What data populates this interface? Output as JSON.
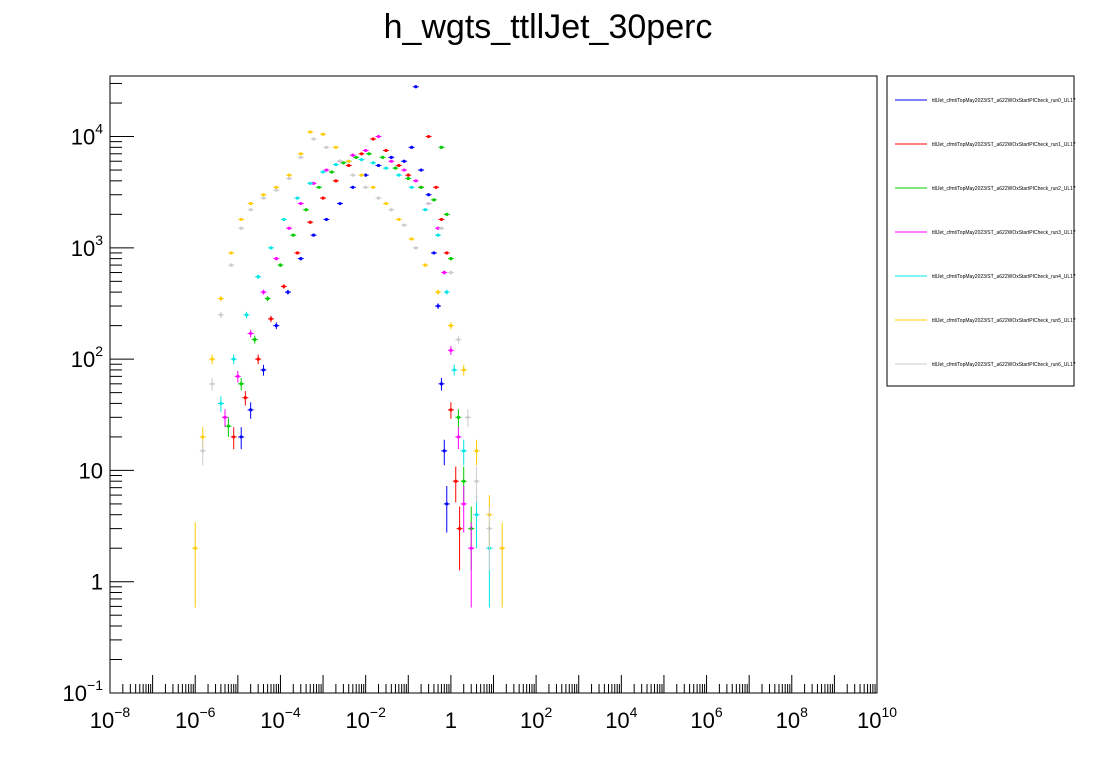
{
  "chart_data": {
    "type": "scatter",
    "title": "h_wgts_ttllJet_30perc",
    "xlabel": "",
    "ylabel": "",
    "x_scale": "log",
    "y_scale": "log",
    "xlim": [
      1e-08,
      10000000000.0
    ],
    "ylim": [
      0.1,
      35000
    ],
    "grid": false,
    "legend_placement": "top-right outside",
    "x_ticks": [
      {
        "base": "10",
        "exp": "−8"
      },
      {
        "base": "10",
        "exp": "−6"
      },
      {
        "base": "10",
        "exp": "−4"
      },
      {
        "base": "10",
        "exp": "−2"
      },
      {
        "base": "1",
        "exp": ""
      },
      {
        "base": "10",
        "exp": "2"
      },
      {
        "base": "10",
        "exp": "4"
      },
      {
        "base": "10",
        "exp": "6"
      },
      {
        "base": "10",
        "exp": "8"
      },
      {
        "base": "10",
        "exp": "10"
      }
    ],
    "y_ticks": [
      {
        "base": "10",
        "exp": "−1"
      },
      {
        "base": "1",
        "exp": ""
      },
      {
        "base": "10",
        "exp": ""
      },
      {
        "base": "10",
        "exp": "2"
      },
      {
        "base": "10",
        "exp": "3"
      },
      {
        "base": "10",
        "exp": "4"
      }
    ],
    "series": [
      {
        "name": "ttllJet_cfmt/TopMay2023/ST_a622WOxStartPICheck_run0_UL17",
        "color": "#0000ff",
        "points": [
          [
            1.2e-05,
            20
          ],
          [
            2e-05,
            35
          ],
          [
            4e-05,
            80
          ],
          [
            8e-05,
            200
          ],
          [
            0.00015,
            400
          ],
          [
            0.0003,
            800
          ],
          [
            0.0006,
            1300
          ],
          [
            0.0012,
            1800
          ],
          [
            0.0025,
            2500
          ],
          [
            0.005,
            3500
          ],
          [
            0.01,
            4500
          ],
          [
            0.02,
            5500
          ],
          [
            0.04,
            6500
          ],
          [
            0.08,
            6000
          ],
          [
            0.12,
            8000
          ],
          [
            0.15,
            28000
          ],
          [
            0.2,
            5000
          ],
          [
            0.3,
            3000
          ],
          [
            0.4,
            900
          ],
          [
            0.5,
            300
          ],
          [
            0.6,
            60
          ],
          [
            0.7,
            15
          ],
          [
            0.8,
            5
          ]
        ]
      },
      {
        "name": "ttllJet_cfmt/TopMay2023/ST_a622WOxStartPICheck_run1_UL17",
        "color": "#ff0000",
        "points": [
          [
            8e-06,
            20
          ],
          [
            1.5e-05,
            45
          ],
          [
            3e-05,
            100
          ],
          [
            6e-05,
            230
          ],
          [
            0.00012,
            450
          ],
          [
            0.00025,
            900
          ],
          [
            0.0005,
            1700
          ],
          [
            0.001,
            2800
          ],
          [
            0.002,
            4000
          ],
          [
            0.004,
            5500
          ],
          [
            0.008,
            7000
          ],
          [
            0.015,
            9500
          ],
          [
            0.03,
            7500
          ],
          [
            0.06,
            5500
          ],
          [
            0.1,
            4500
          ],
          [
            0.2,
            3500
          ],
          [
            0.3,
            10000
          ],
          [
            0.45,
            3500
          ],
          [
            0.6,
            1800
          ],
          [
            0.8,
            900
          ],
          [
            1.0,
            35
          ],
          [
            1.3,
            8
          ],
          [
            1.6,
            3
          ]
        ]
      },
      {
        "name": "ttllJet_cfmt/TopMay2023/ST_a622WOxStartPICheck_run2_UL17",
        "color": "#00cc00",
        "points": [
          [
            6e-06,
            25
          ],
          [
            1.2e-05,
            60
          ],
          [
            2.5e-05,
            150
          ],
          [
            5e-05,
            350
          ],
          [
            0.0001,
            700
          ],
          [
            0.0002,
            1300
          ],
          [
            0.0004,
            2200
          ],
          [
            0.0008,
            3500
          ],
          [
            0.0016,
            4800
          ],
          [
            0.003,
            5800
          ],
          [
            0.006,
            6500
          ],
          [
            0.012,
            7000
          ],
          [
            0.025,
            6500
          ],
          [
            0.05,
            5200
          ],
          [
            0.1,
            4200
          ],
          [
            0.2,
            3500
          ],
          [
            0.4,
            2700
          ],
          [
            0.6,
            8000
          ],
          [
            0.8,
            2000
          ],
          [
            1.0,
            800
          ],
          [
            1.5,
            30
          ],
          [
            2.0,
            8
          ],
          [
            3.0,
            3
          ]
        ]
      },
      {
        "name": "ttllJet_cfmt/TopMay2023/ST_a622WOxStartPICheck_run3_UL17",
        "color": "#ff00ff",
        "points": [
          [
            5e-06,
            30
          ],
          [
            1e-05,
            70
          ],
          [
            2e-05,
            170
          ],
          [
            4e-05,
            400
          ],
          [
            8e-05,
            800
          ],
          [
            0.00016,
            1500
          ],
          [
            0.0003,
            2500
          ],
          [
            0.0006,
            3800
          ],
          [
            0.0012,
            5000
          ],
          [
            0.0025,
            6000
          ],
          [
            0.005,
            6800
          ],
          [
            0.01,
            7500
          ],
          [
            0.02,
            10000
          ],
          [
            0.04,
            6000
          ],
          [
            0.08,
            5000
          ],
          [
            0.15,
            4000
          ],
          [
            0.3,
            2500
          ],
          [
            0.5,
            1500
          ],
          [
            0.7,
            600
          ],
          [
            1.0,
            120
          ],
          [
            1.5,
            20
          ],
          [
            2.0,
            5
          ],
          [
            3.0,
            2
          ]
        ]
      },
      {
        "name": "ttllJet_cfmt/TopMay2023/ST_a622WOxStartPICheck_run4_UL17",
        "color": "#00e5e5",
        "points": [
          [
            4e-06,
            40
          ],
          [
            8e-06,
            100
          ],
          [
            1.6e-05,
            250
          ],
          [
            3e-05,
            550
          ],
          [
            6e-05,
            1000
          ],
          [
            0.00012,
            1800
          ],
          [
            0.00025,
            2800
          ],
          [
            0.0005,
            3800
          ],
          [
            0.001,
            4800
          ],
          [
            0.002,
            5600
          ],
          [
            0.004,
            6000
          ],
          [
            0.008,
            6200
          ],
          [
            0.015,
            5800
          ],
          [
            0.03,
            5200
          ],
          [
            0.06,
            4500
          ],
          [
            0.12,
            3500
          ],
          [
            0.25,
            2200
          ],
          [
            0.5,
            1300
          ],
          [
            0.8,
            400
          ],
          [
            1.2,
            80
          ],
          [
            2.0,
            15
          ],
          [
            4.0,
            4
          ],
          [
            8.0,
            2
          ]
        ]
      },
      {
        "name": "ttllJet_cfmt/TopMay2023/ST_a622WOxStartPICheck_run5_UL17",
        "color": "#ffcc00",
        "points": [
          [
            1e-06,
            2
          ],
          [
            1.5e-06,
            20
          ],
          [
            2.5e-06,
            100
          ],
          [
            4e-06,
            350
          ],
          [
            7e-06,
            900
          ],
          [
            1.2e-05,
            1800
          ],
          [
            2e-05,
            2500
          ],
          [
            4e-05,
            3000
          ],
          [
            8e-05,
            3500
          ],
          [
            0.00016,
            4500
          ],
          [
            0.0003,
            7000
          ],
          [
            0.0005,
            11000
          ],
          [
            0.001,
            10500
          ],
          [
            0.002,
            8000
          ],
          [
            0.004,
            6000
          ],
          [
            0.008,
            4500
          ],
          [
            0.015,
            3500
          ],
          [
            0.03,
            2500
          ],
          [
            0.06,
            1800
          ],
          [
            0.12,
            1200
          ],
          [
            0.25,
            700
          ],
          [
            0.5,
            400
          ],
          [
            1.0,
            200
          ],
          [
            2.0,
            80
          ],
          [
            4.0,
            15
          ],
          [
            8.0,
            4
          ],
          [
            16,
            2
          ]
        ]
      },
      {
        "name": "ttllJet_cfmt/TopMay2023/ST_a622WOxStartPICheck_run6_UL17",
        "color": "#cccccc",
        "points": [
          [
            1.5e-06,
            15
          ],
          [
            2.5e-06,
            60
          ],
          [
            4e-06,
            250
          ],
          [
            7e-06,
            700
          ],
          [
            1.2e-05,
            1500
          ],
          [
            2e-05,
            2200
          ],
          [
            4e-05,
            2800
          ],
          [
            8e-05,
            3300
          ],
          [
            0.00016,
            4200
          ],
          [
            0.0003,
            6500
          ],
          [
            0.0006,
            9500
          ],
          [
            0.0012,
            8000
          ],
          [
            0.0025,
            6000
          ],
          [
            0.005,
            4500
          ],
          [
            0.01,
            3500
          ],
          [
            0.02,
            2800
          ],
          [
            0.04,
            2200
          ],
          [
            0.08,
            1600
          ],
          [
            0.15,
            1000
          ],
          [
            0.3,
            2500
          ],
          [
            0.6,
            1500
          ],
          [
            1.0,
            600
          ],
          [
            1.5,
            150
          ],
          [
            2.5,
            30
          ],
          [
            4.0,
            8
          ],
          [
            8.0,
            3
          ]
        ]
      }
    ]
  }
}
